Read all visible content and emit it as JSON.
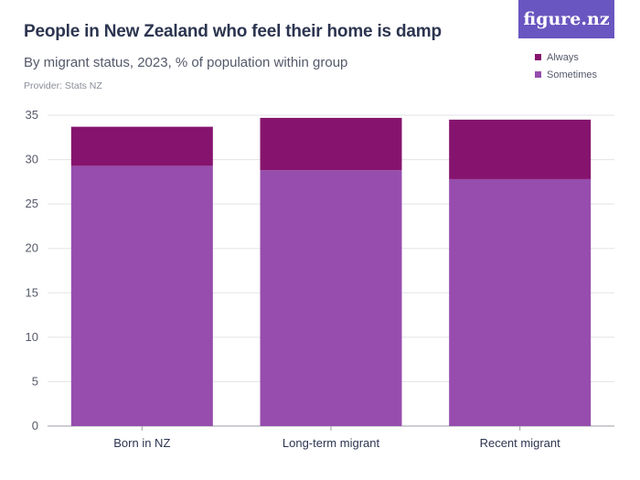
{
  "header": {
    "title": "People in New Zealand who feel their home is damp",
    "subtitle": "By migrant status, 2023, % of population within group",
    "provider": "Provider: Stats NZ"
  },
  "logo": {
    "text": "figure.nz"
  },
  "legend": {
    "items": [
      {
        "label": "Always",
        "color": "#86146e"
      },
      {
        "label": "Sometimes",
        "color": "#964dad"
      }
    ]
  },
  "chart_data": {
    "type": "bar",
    "stacked": true,
    "categories": [
      "Born in NZ",
      "Long-term migrant",
      "Recent migrant"
    ],
    "series": [
      {
        "name": "Sometimes",
        "values": [
          29.3,
          28.8,
          27.8
        ],
        "color": "#964dad"
      },
      {
        "name": "Always",
        "values": [
          4.4,
          5.9,
          6.7
        ],
        "color": "#86146e"
      }
    ],
    "ylim": [
      0,
      35
    ],
    "yticks": [
      0,
      5,
      10,
      15,
      20,
      25,
      30,
      35
    ],
    "grid": true,
    "legend_position": "top-right"
  }
}
